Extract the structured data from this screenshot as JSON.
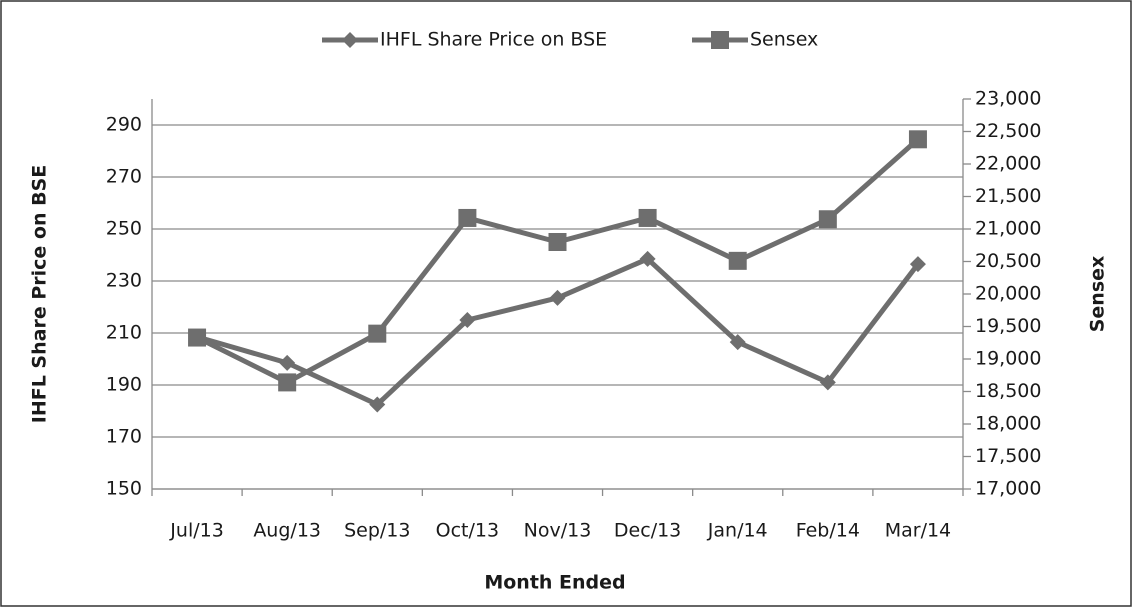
{
  "chart_data": {
    "type": "line",
    "x_label": "Month Ended",
    "y_label": "IHFL  Share Price on BSE",
    "y2_label": "Sensex",
    "categories": [
      "Jul/13",
      "Aug/13",
      "Sep/13",
      "Oct/13",
      "Nov/13",
      "Dec/13",
      "Jan/14",
      "Feb/14",
      "Mar/14"
    ],
    "series": [
      {
        "name": "IHFL Share Price on BSE",
        "color": "#6e6e6e",
        "marker": "diamond",
        "values": [
          208.5,
          198.5,
          182.5,
          215,
          223.5,
          238.5,
          206.5,
          191,
          236.5
        ]
      },
      {
        "name": "Sensex",
        "color": "#6e6e6e",
        "marker": "square",
        "axis": "y2",
        "values": [
          19330,
          18640,
          19390,
          21170,
          20800,
          21170,
          20510,
          21150,
          22380
        ]
      }
    ],
    "ylim": [
      150,
      300
    ],
    "yticks": [
      150,
      170,
      190,
      210,
      230,
      250,
      270,
      290
    ],
    "y2lim": [
      17000,
      23000
    ],
    "y2ticks": [
      {
        "value": 17000,
        "label": "17,000"
      },
      {
        "value": 17500,
        "label": "17,500"
      },
      {
        "value": 18000,
        "label": "18,000"
      },
      {
        "value": 18500,
        "label": "18,500"
      },
      {
        "value": 19000,
        "label": "19,000"
      },
      {
        "value": 19500,
        "label": "19,500"
      },
      {
        "value": 20000,
        "label": "20,000"
      },
      {
        "value": 20500,
        "label": "20,500"
      },
      {
        "value": 21000,
        "label": "21,000"
      },
      {
        "value": 21500,
        "label": "21,500"
      },
      {
        "value": 22000,
        "label": "22,000"
      },
      {
        "value": 22500,
        "label": "22,500"
      },
      {
        "value": 23000,
        "label": "23,000"
      }
    ],
    "grid": true,
    "legend": "top"
  }
}
